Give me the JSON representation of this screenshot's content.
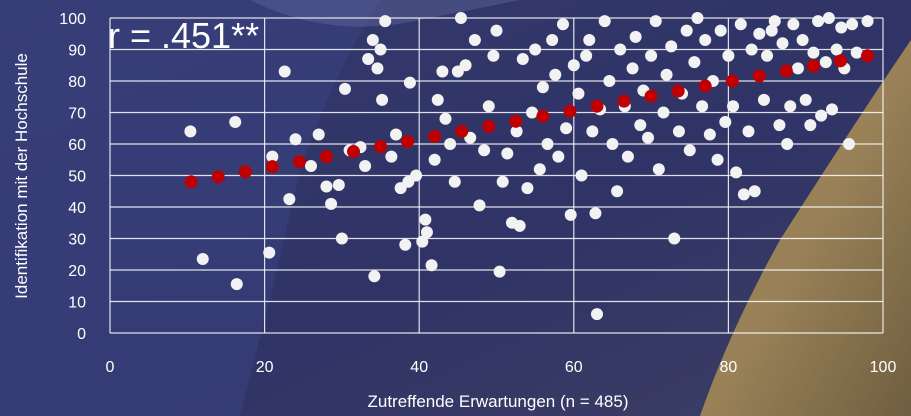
{
  "chart_data": {
    "type": "scatter",
    "annotation": "r = .451**",
    "xlabel": "Zutreffende Erwartungen (n = 485)",
    "ylabel": "Identifikation mit der Hochschule",
    "xlim": [
      0,
      100
    ],
    "ylim": [
      0,
      100
    ],
    "x_ticks": [
      "0",
      "20",
      "40",
      "60",
      "80",
      "100"
    ],
    "y_ticks": [
      "0",
      "10",
      "20",
      "30",
      "40",
      "50",
      "60",
      "70",
      "80",
      "90",
      "100"
    ],
    "grid": true,
    "colors": {
      "observations": "#f2f2f2",
      "trend": "#c00000",
      "grid": "#ffffff"
    },
    "series": [
      {
        "values": [
          [
            10.4,
            64
          ],
          [
            12,
            23.5
          ],
          [
            16.2,
            67
          ],
          [
            16.4,
            15.5
          ],
          [
            20.6,
            25.5
          ],
          [
            21,
            56
          ],
          [
            22.6,
            83
          ],
          [
            23.2,
            42.5
          ],
          [
            24,
            61.5
          ],
          [
            26,
            53
          ],
          [
            27,
            63
          ],
          [
            28,
            46.5
          ],
          [
            28.6,
            41
          ],
          [
            29.6,
            47
          ],
          [
            30,
            30
          ],
          [
            30.4,
            77.5
          ],
          [
            31,
            58
          ],
          [
            32.4,
            59
          ],
          [
            33,
            53
          ],
          [
            33.4,
            87
          ],
          [
            34,
            93
          ],
          [
            34.2,
            18
          ],
          [
            34.6,
            84
          ],
          [
            35,
            90
          ],
          [
            35.2,
            74
          ],
          [
            35.6,
            99
          ],
          [
            36.4,
            56
          ],
          [
            37,
            63
          ],
          [
            37.6,
            46
          ],
          [
            38.2,
            28
          ],
          [
            38.6,
            48
          ],
          [
            38.8,
            79.5
          ],
          [
            39.6,
            50
          ],
          [
            40.4,
            29
          ],
          [
            40.8,
            36
          ],
          [
            41,
            32
          ],
          [
            41.6,
            21.5
          ],
          [
            42,
            55
          ],
          [
            42.4,
            74
          ],
          [
            43,
            83
          ],
          [
            43.4,
            68
          ],
          [
            44,
            60
          ],
          [
            44.6,
            48
          ],
          [
            45,
            83
          ],
          [
            45.4,
            100
          ],
          [
            46,
            85
          ],
          [
            46.6,
            62
          ],
          [
            47.2,
            93
          ],
          [
            47.8,
            40.5
          ],
          [
            48.4,
            58
          ],
          [
            49,
            72
          ],
          [
            49.6,
            88
          ],
          [
            50,
            96
          ],
          [
            50.4,
            19.5
          ],
          [
            50.8,
            48
          ],
          [
            51.4,
            57
          ],
          [
            52,
            35
          ],
          [
            52.6,
            64
          ],
          [
            53,
            34
          ],
          [
            53.4,
            87
          ],
          [
            54,
            46
          ],
          [
            54.6,
            70
          ],
          [
            55,
            90
          ],
          [
            55.6,
            52
          ],
          [
            56,
            78
          ],
          [
            56.6,
            60
          ],
          [
            57.2,
            93
          ],
          [
            57.6,
            82
          ],
          [
            58,
            56
          ],
          [
            58.6,
            98
          ],
          [
            59,
            65
          ],
          [
            59.6,
            37.5
          ],
          [
            60,
            85
          ],
          [
            60.6,
            76
          ],
          [
            61,
            50
          ],
          [
            61.6,
            88
          ],
          [
            62,
            93
          ],
          [
            62.4,
            64
          ],
          [
            62.8,
            38
          ],
          [
            63,
            6
          ],
          [
            63.4,
            71
          ],
          [
            64,
            99
          ],
          [
            64.6,
            80
          ],
          [
            65,
            60
          ],
          [
            65.6,
            45
          ],
          [
            66,
            90
          ],
          [
            66.6,
            72
          ],
          [
            67,
            56
          ],
          [
            67.6,
            84
          ],
          [
            68,
            94
          ],
          [
            68.6,
            66
          ],
          [
            69,
            77
          ],
          [
            69.6,
            62
          ],
          [
            70,
            88
          ],
          [
            70.6,
            99
          ],
          [
            71,
            52
          ],
          [
            71.6,
            70
          ],
          [
            72,
            82
          ],
          [
            72.6,
            91
          ],
          [
            73,
            30
          ],
          [
            73.6,
            64
          ],
          [
            74,
            76
          ],
          [
            74.6,
            96
          ],
          [
            75,
            58
          ],
          [
            75.6,
            86
          ],
          [
            76,
            100
          ],
          [
            76.6,
            72
          ],
          [
            77,
            93
          ],
          [
            77.6,
            63
          ],
          [
            78,
            80
          ],
          [
            78.6,
            55
          ],
          [
            79,
            96
          ],
          [
            79.6,
            67
          ],
          [
            80,
            88
          ],
          [
            80.6,
            72
          ],
          [
            81,
            51
          ],
          [
            81.6,
            98
          ],
          [
            82,
            44
          ],
          [
            82.6,
            64
          ],
          [
            83,
            90
          ],
          [
            83.4,
            45
          ],
          [
            84,
            95
          ],
          [
            84.6,
            74
          ],
          [
            85,
            88
          ],
          [
            85.6,
            96
          ],
          [
            86,
            99
          ],
          [
            86.6,
            66
          ],
          [
            87,
            92
          ],
          [
            87.6,
            60
          ],
          [
            88,
            72
          ],
          [
            88.4,
            98
          ],
          [
            89,
            84
          ],
          [
            89.6,
            93
          ],
          [
            90,
            74
          ],
          [
            90.6,
            66
          ],
          [
            91,
            89
          ],
          [
            91.6,
            99
          ],
          [
            92,
            69
          ],
          [
            92.6,
            86
          ],
          [
            93,
            100
          ],
          [
            93.4,
            71
          ],
          [
            94,
            90
          ],
          [
            94.6,
            97
          ],
          [
            95,
            84
          ],
          [
            95.6,
            60
          ],
          [
            96,
            98
          ],
          [
            96.6,
            89
          ],
          [
            98,
            99
          ]
        ]
      },
      {
        "values": [
          [
            10.5,
            48
          ],
          [
            14,
            49.6
          ],
          [
            17.5,
            51.2
          ],
          [
            21,
            52.8
          ],
          [
            24.5,
            54.4
          ],
          [
            28,
            56
          ],
          [
            31.5,
            57.6
          ],
          [
            35,
            59.2
          ],
          [
            38.5,
            60.8
          ],
          [
            42,
            62.4
          ],
          [
            45.5,
            64
          ],
          [
            49,
            65.6
          ],
          [
            52.5,
            67.2
          ],
          [
            56,
            68.8
          ],
          [
            59.5,
            70.4
          ],
          [
            63,
            72
          ],
          [
            66.5,
            73.6
          ],
          [
            70,
            75.2
          ],
          [
            73.5,
            76.8
          ],
          [
            77,
            78.4
          ],
          [
            80.5,
            80
          ],
          [
            84,
            81.6
          ],
          [
            87.5,
            83.2
          ],
          [
            91,
            84.8
          ],
          [
            94.5,
            86.4
          ],
          [
            98,
            88
          ]
        ]
      }
    ]
  }
}
